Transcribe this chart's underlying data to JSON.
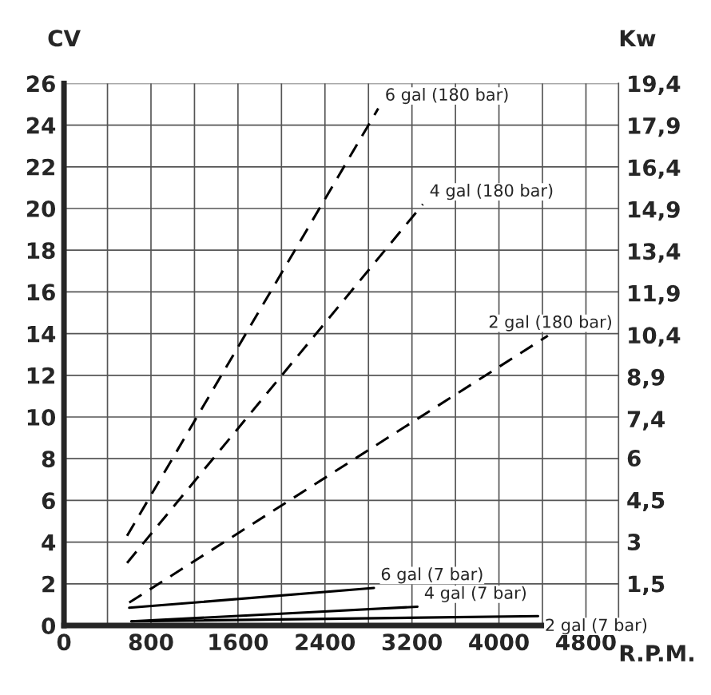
{
  "chart_data": {
    "type": "line",
    "ylabel": "CV",
    "y2label": "Kw",
    "xlabel": "R.P.M.",
    "xlim": [
      0,
      5100
    ],
    "xticks": [
      0,
      {
        "value": 400,
        "label": null
      },
      800,
      {
        "value": 1200,
        "label": null
      },
      1600,
      {
        "value": 2000,
        "label": null
      },
      2400,
      {
        "value": 2800,
        "label": null
      },
      3200,
      {
        "value": 3600,
        "label": null
      },
      4000,
      {
        "value": 4400,
        "label": null
      },
      4800
    ],
    "ylim": [
      0,
      26
    ],
    "yticks": [
      0,
      2,
      4,
      6,
      8,
      10,
      12,
      14,
      16,
      18,
      20,
      22,
      24,
      26
    ],
    "y2lim": [
      0,
      19.4
    ],
    "y2ticks": [
      {
        "value": 1.5,
        "label": "1,5"
      },
      3,
      {
        "value": 4.5,
        "label": "4,5"
      },
      6,
      {
        "value": 7.4,
        "label": "7,4"
      },
      {
        "value": 8.9,
        "label": "8,9"
      },
      {
        "value": 10.4,
        "label": "10,4"
      },
      {
        "value": 11.9,
        "label": "11,9"
      },
      {
        "value": 13.4,
        "label": "13,4"
      },
      {
        "value": 14.9,
        "label": "14,9"
      },
      {
        "value": 16.4,
        "label": "16,4"
      },
      {
        "value": 17.9,
        "label": "17,9"
      },
      {
        "value": 19.4,
        "label": "19,4"
      }
    ],
    "grid": true,
    "legend": false,
    "marker": "none",
    "series": [
      {
        "name": "6 gal (180 bar)",
        "color": "#000000",
        "line_style": "dashed",
        "x": [
          580,
          2890
        ],
        "values": [
          4.3,
          24.8
        ]
      },
      {
        "name": "4 gal (180 bar)",
        "color": "#000000",
        "line_style": "dashed",
        "x": [
          580,
          3300
        ],
        "values": [
          3.0,
          20.2
        ]
      },
      {
        "name": "2 gal (180 bar)",
        "color": "#000000",
        "line_style": "dashed",
        "x": [
          600,
          4450
        ],
        "values": [
          1.1,
          13.9
        ]
      },
      {
        "name": "6 gal (7 bar)",
        "color": "#000000",
        "line_style": "solid",
        "x": [
          600,
          2850
        ],
        "values": [
          0.85,
          1.8
        ]
      },
      {
        "name": "4 gal (7 bar)",
        "color": "#000000",
        "line_style": "solid",
        "x": [
          620,
          3250
        ],
        "values": [
          0.2,
          0.9
        ]
      },
      {
        "name": "2 gal (7 bar)",
        "color": "#000000",
        "line_style": "solid",
        "x": [
          620,
          4360
        ],
        "values": [
          0.2,
          0.45
        ]
      }
    ]
  }
}
